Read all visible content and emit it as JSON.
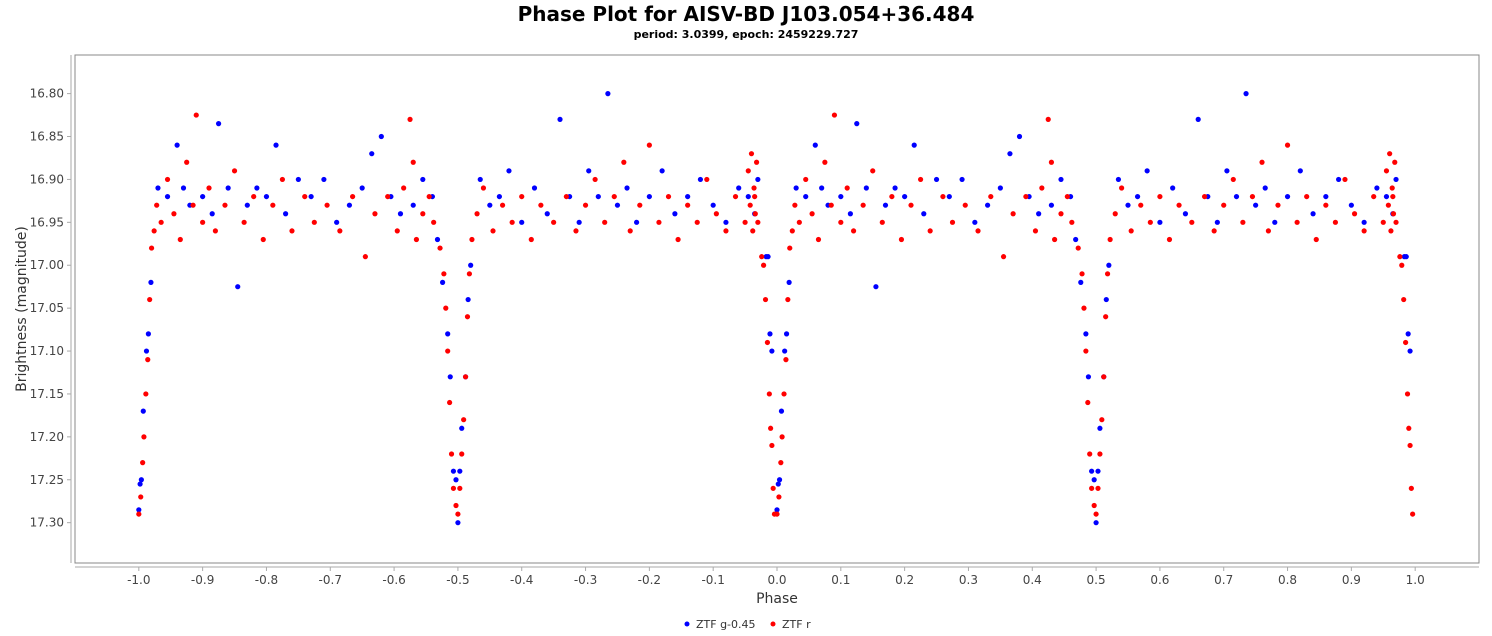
{
  "chart_data": {
    "type": "scatter",
    "title": "Phase Plot for AISV-BD J103.054+36.484",
    "subtitle": "period: 3.0399, epoch: 2459229.727",
    "xlabel": "Phase",
    "ylabel": "Brightness (magnitude)",
    "xlim": [
      -1.1,
      1.1
    ],
    "ylim": [
      16.755,
      17.347
    ],
    "y_inverted": true,
    "x_ticks": [
      "-1.0",
      "-0.9",
      "-0.8",
      "-0.7",
      "-0.6",
      "-0.5",
      "-0.4",
      "-0.3",
      "-0.2",
      "-0.1",
      "0.0",
      "0.1",
      "0.2",
      "0.3",
      "0.4",
      "0.5",
      "0.6",
      "0.7",
      "0.8",
      "0.9",
      "1.0"
    ],
    "y_ticks": [
      "16.80",
      "16.85",
      "16.90",
      "16.95",
      "17.00",
      "17.05",
      "17.10",
      "17.15",
      "17.20",
      "17.25",
      "17.30"
    ],
    "grid": false,
    "legend_position": "bottom",
    "phase_repeat_offset": -1,
    "series": [
      {
        "name": "ZTF g-0.45",
        "color": "#0000ff",
        "points": [
          [
            0.0,
            17.285
          ],
          [
            0.002,
            17.255
          ],
          [
            0.004,
            17.25
          ],
          [
            0.007,
            17.17
          ],
          [
            0.012,
            17.1
          ],
          [
            0.015,
            17.08
          ],
          [
            0.019,
            17.02
          ],
          [
            0.992,
            17.1
          ],
          [
            0.989,
            17.08
          ],
          [
            0.986,
            16.99
          ],
          [
            0.983,
            16.99
          ],
          [
            0.484,
            17.08
          ],
          [
            0.488,
            17.13
          ],
          [
            0.493,
            17.24
          ],
          [
            0.497,
            17.25
          ],
          [
            0.5,
            17.3
          ],
          [
            0.503,
            17.24
          ],
          [
            0.506,
            17.19
          ],
          [
            0.512,
            17.13
          ],
          [
            0.516,
            17.04
          ],
          [
            0.52,
            17.0
          ],
          [
            0.476,
            17.02
          ],
          [
            0.03,
            16.91
          ],
          [
            0.045,
            16.92
          ],
          [
            0.06,
            16.86
          ],
          [
            0.07,
            16.91
          ],
          [
            0.08,
            16.93
          ],
          [
            0.1,
            16.92
          ],
          [
            0.115,
            16.94
          ],
          [
            0.125,
            16.835
          ],
          [
            0.14,
            16.91
          ],
          [
            0.155,
            17.025
          ],
          [
            0.17,
            16.93
          ],
          [
            0.185,
            16.91
          ],
          [
            0.2,
            16.92
          ],
          [
            0.215,
            16.86
          ],
          [
            0.23,
            16.94
          ],
          [
            0.25,
            16.9
          ],
          [
            0.27,
            16.92
          ],
          [
            0.29,
            16.9
          ],
          [
            0.31,
            16.95
          ],
          [
            0.33,
            16.93
          ],
          [
            0.35,
            16.91
          ],
          [
            0.365,
            16.87
          ],
          [
            0.38,
            16.85
          ],
          [
            0.395,
            16.92
          ],
          [
            0.41,
            16.94
          ],
          [
            0.43,
            16.93
          ],
          [
            0.445,
            16.9
          ],
          [
            0.46,
            16.92
          ],
          [
            0.468,
            16.97
          ],
          [
            0.535,
            16.9
          ],
          [
            0.55,
            16.93
          ],
          [
            0.565,
            16.92
          ],
          [
            0.58,
            16.89
          ],
          [
            0.6,
            16.95
          ],
          [
            0.62,
            16.91
          ],
          [
            0.64,
            16.94
          ],
          [
            0.66,
            16.83
          ],
          [
            0.675,
            16.92
          ],
          [
            0.69,
            16.95
          ],
          [
            0.705,
            16.89
          ],
          [
            0.72,
            16.92
          ],
          [
            0.735,
            16.8
          ],
          [
            0.75,
            16.93
          ],
          [
            0.765,
            16.91
          ],
          [
            0.78,
            16.95
          ],
          [
            0.8,
            16.92
          ],
          [
            0.82,
            16.89
          ],
          [
            0.84,
            16.94
          ],
          [
            0.86,
            16.92
          ],
          [
            0.88,
            16.9
          ],
          [
            0.9,
            16.93
          ],
          [
            0.92,
            16.95
          ],
          [
            0.94,
            16.91
          ],
          [
            0.955,
            16.92
          ],
          [
            0.965,
            16.94
          ],
          [
            0.97,
            16.9
          ]
        ]
      },
      {
        "name": "ZTF r",
        "color": "#ff0000",
        "points": [
          [
            0.0,
            17.29
          ],
          [
            0.003,
            17.27
          ],
          [
            0.006,
            17.23
          ],
          [
            0.008,
            17.2
          ],
          [
            0.011,
            17.15
          ],
          [
            0.014,
            17.11
          ],
          [
            0.017,
            17.04
          ],
          [
            0.02,
            16.98
          ],
          [
            0.024,
            16.96
          ],
          [
            0.996,
            17.29
          ],
          [
            0.994,
            17.26
          ],
          [
            0.992,
            17.21
          ],
          [
            0.99,
            17.19
          ],
          [
            0.988,
            17.15
          ],
          [
            0.985,
            17.09
          ],
          [
            0.982,
            17.04
          ],
          [
            0.979,
            17.0
          ],
          [
            0.976,
            16.99
          ],
          [
            0.472,
            16.98
          ],
          [
            0.478,
            17.01
          ],
          [
            0.481,
            17.05
          ],
          [
            0.484,
            17.1
          ],
          [
            0.487,
            17.16
          ],
          [
            0.49,
            17.22
          ],
          [
            0.493,
            17.26
          ],
          [
            0.497,
            17.28
          ],
          [
            0.5,
            17.29
          ],
          [
            0.503,
            17.26
          ],
          [
            0.506,
            17.22
          ],
          [
            0.509,
            17.18
          ],
          [
            0.512,
            17.13
          ],
          [
            0.515,
            17.06
          ],
          [
            0.518,
            17.01
          ],
          [
            0.522,
            16.97
          ],
          [
            0.028,
            16.93
          ],
          [
            0.035,
            16.95
          ],
          [
            0.045,
            16.9
          ],
          [
            0.055,
            16.94
          ],
          [
            0.065,
            16.97
          ],
          [
            0.075,
            16.88
          ],
          [
            0.085,
            16.93
          ],
          [
            0.09,
            16.825
          ],
          [
            0.1,
            16.95
          ],
          [
            0.11,
            16.91
          ],
          [
            0.12,
            16.96
          ],
          [
            0.135,
            16.93
          ],
          [
            0.15,
            16.89
          ],
          [
            0.165,
            16.95
          ],
          [
            0.18,
            16.92
          ],
          [
            0.195,
            16.97
          ],
          [
            0.21,
            16.93
          ],
          [
            0.225,
            16.9
          ],
          [
            0.24,
            16.96
          ],
          [
            0.26,
            16.92
          ],
          [
            0.275,
            16.95
          ],
          [
            0.295,
            16.93
          ],
          [
            0.315,
            16.96
          ],
          [
            0.335,
            16.92
          ],
          [
            0.355,
            16.99
          ],
          [
            0.37,
            16.94
          ],
          [
            0.39,
            16.92
          ],
          [
            0.405,
            16.96
          ],
          [
            0.415,
            16.91
          ],
          [
            0.425,
            16.83
          ],
          [
            0.43,
            16.88
          ],
          [
            0.435,
            16.97
          ],
          [
            0.445,
            16.94
          ],
          [
            0.455,
            16.92
          ],
          [
            0.462,
            16.95
          ],
          [
            0.53,
            16.94
          ],
          [
            0.54,
            16.91
          ],
          [
            0.555,
            16.96
          ],
          [
            0.57,
            16.93
          ],
          [
            0.585,
            16.95
          ],
          [
            0.6,
            16.92
          ],
          [
            0.615,
            16.97
          ],
          [
            0.63,
            16.93
          ],
          [
            0.65,
            16.95
          ],
          [
            0.67,
            16.92
          ],
          [
            0.685,
            16.96
          ],
          [
            0.7,
            16.93
          ],
          [
            0.715,
            16.9
          ],
          [
            0.73,
            16.95
          ],
          [
            0.745,
            16.92
          ],
          [
            0.76,
            16.88
          ],
          [
            0.77,
            16.96
          ],
          [
            0.785,
            16.93
          ],
          [
            0.8,
            16.86
          ],
          [
            0.815,
            16.95
          ],
          [
            0.83,
            16.92
          ],
          [
            0.845,
            16.97
          ],
          [
            0.86,
            16.93
          ],
          [
            0.875,
            16.95
          ],
          [
            0.89,
            16.9
          ],
          [
            0.905,
            16.94
          ],
          [
            0.92,
            16.96
          ],
          [
            0.935,
            16.92
          ],
          [
            0.95,
            16.95
          ],
          [
            0.955,
            16.89
          ],
          [
            0.958,
            16.93
          ],
          [
            0.96,
            16.87
          ],
          [
            0.962,
            16.96
          ],
          [
            0.964,
            16.91
          ],
          [
            0.966,
            16.94
          ],
          [
            0.968,
            16.88
          ],
          [
            0.97,
            16.95
          ],
          [
            0.965,
            16.92
          ]
        ]
      }
    ]
  }
}
